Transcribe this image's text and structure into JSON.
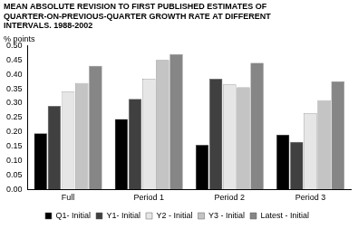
{
  "chart_data": {
    "type": "bar",
    "title": [
      "MEAN ABSOLUTE REVISION TO FIRST PUBLISHED ESTIMATES OF",
      "QUARTER-ON-PREVIOUS-QUARTER GROWTH RATE AT DIFFERENT",
      "INTERVALS. 1988-2002"
    ],
    "y_label": "% points",
    "categories": [
      "Full",
      "Period 1",
      "Period 2",
      "Period 3"
    ],
    "series": [
      {
        "name": "Q1- Initial",
        "color": "#000000",
        "values": [
          0.195,
          0.245,
          0.155,
          0.19
        ]
      },
      {
        "name": "Y1- Initial",
        "color": "#404040",
        "values": [
          0.29,
          0.315,
          0.385,
          0.165
        ]
      },
      {
        "name": "Y2 - Initial",
        "color": "#e6e6e6",
        "values": [
          0.34,
          0.385,
          0.365,
          0.265
        ]
      },
      {
        "name": "Y3 - Initial",
        "color": "#c4c4c4",
        "values": [
          0.37,
          0.45,
          0.355,
          0.31
        ]
      },
      {
        "name": "Latest - Initial",
        "color": "#868686",
        "values": [
          0.43,
          0.47,
          0.44,
          0.375
        ]
      }
    ],
    "ylim": [
      0,
      0.5
    ],
    "yticks": [
      {
        "value": 0,
        "label": "0.00"
      },
      {
        "value": 0.05,
        "label": "0.05"
      },
      {
        "value": 0.1,
        "label": "0.10"
      },
      {
        "value": 0.15,
        "label": "0.15"
      },
      {
        "value": 0.2,
        "label": "0.20"
      },
      {
        "value": 0.25,
        "label": "0.25"
      },
      {
        "value": 0.3,
        "label": "0.30"
      },
      {
        "value": 0.35,
        "label": "0.35"
      },
      {
        "value": 0.4,
        "label": "0.40"
      },
      {
        "value": 0.45,
        "label": "0.45"
      },
      {
        "value": 0.5,
        "label": "0.50"
      }
    ],
    "grid": false,
    "legend": "bottom"
  }
}
